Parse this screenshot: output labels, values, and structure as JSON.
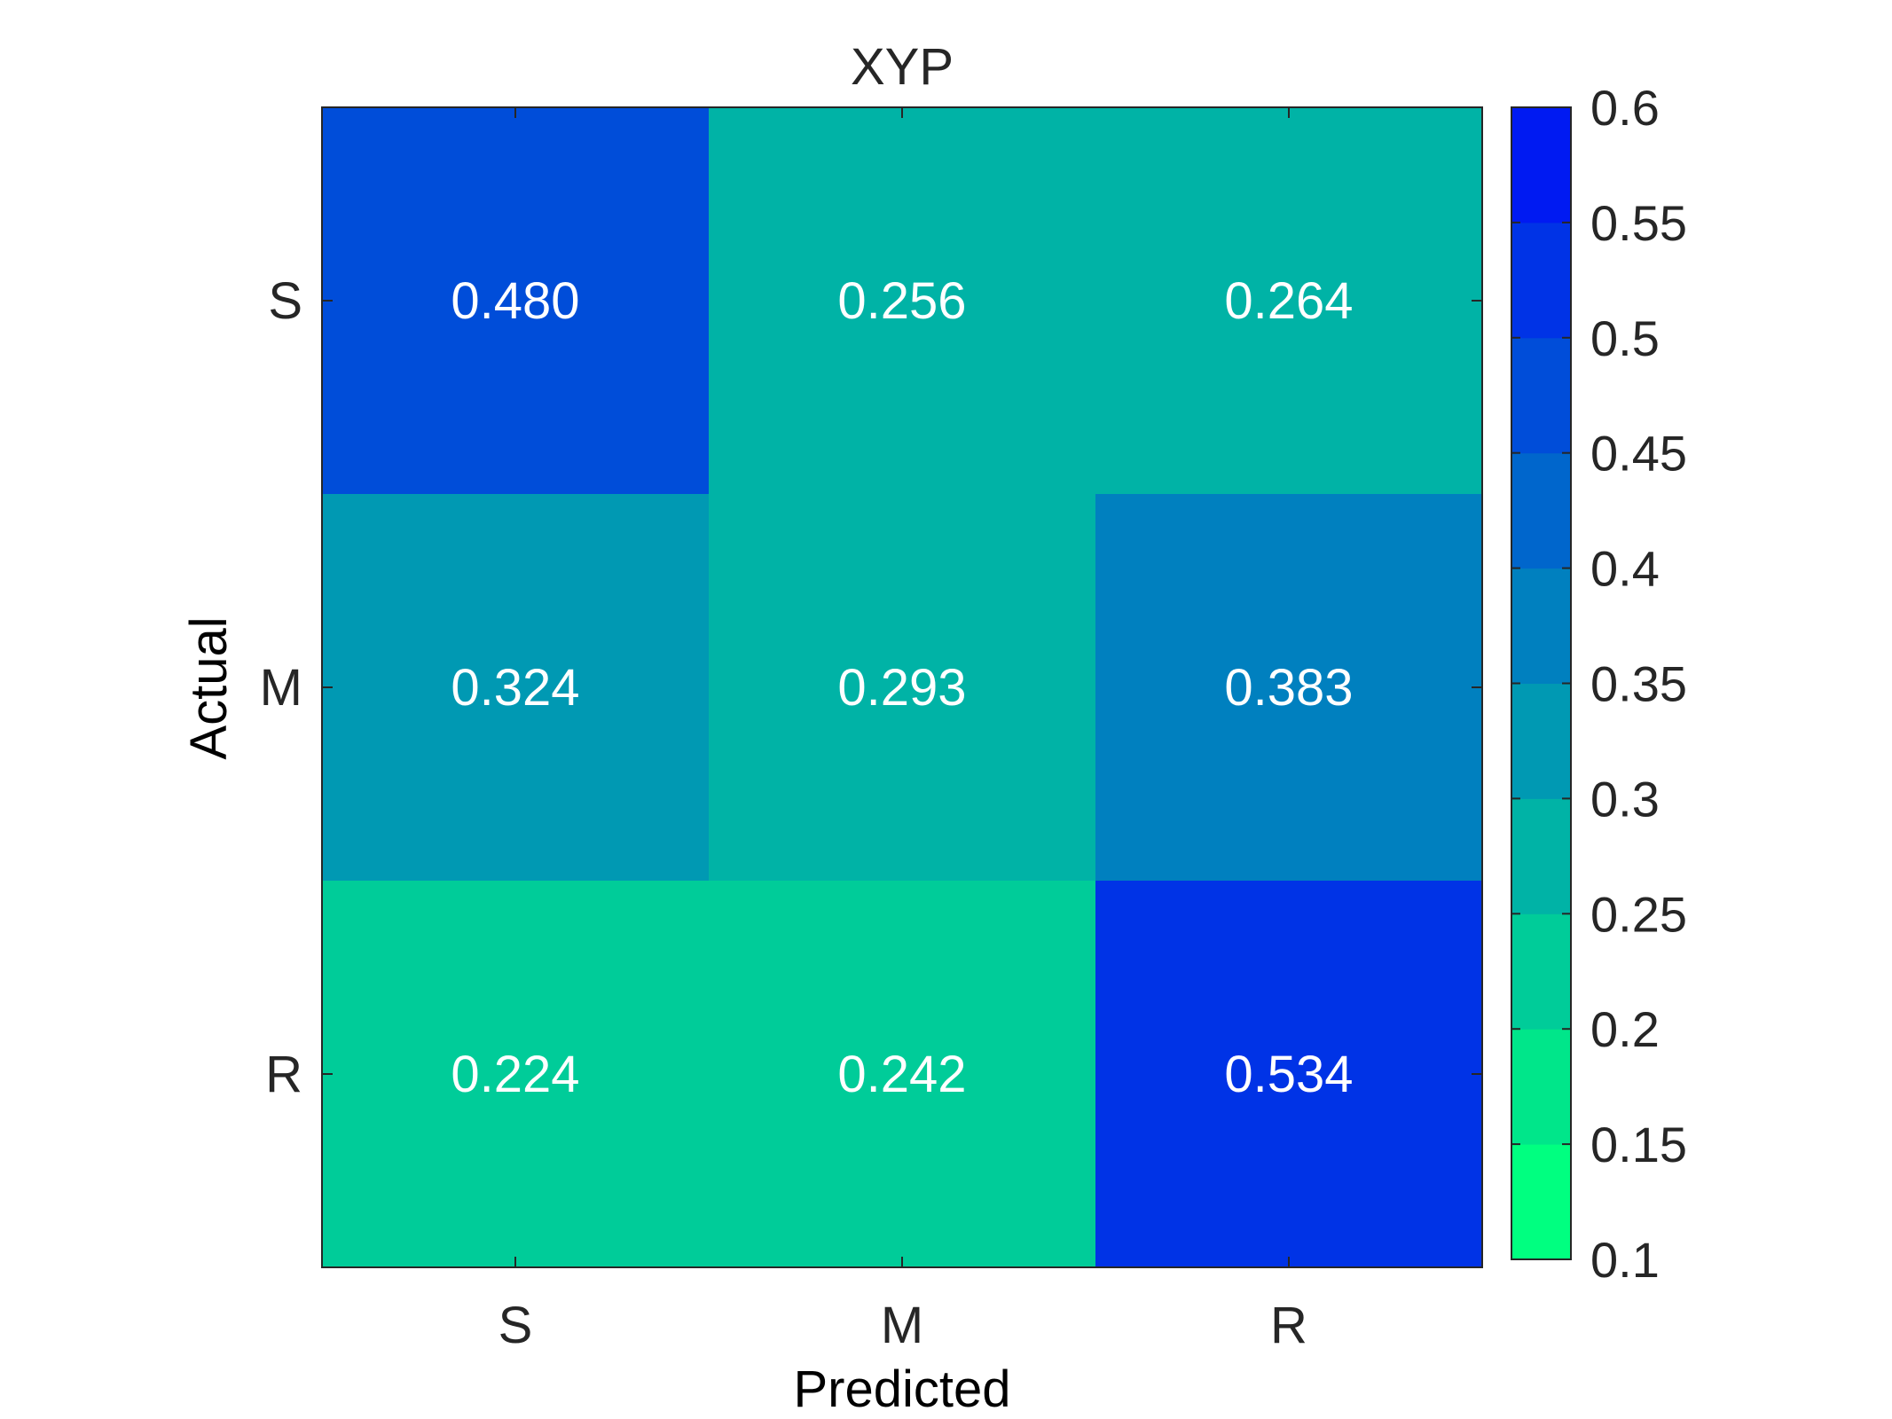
{
  "chart_data": {
    "type": "heatmap",
    "title": "XYP",
    "xlabel": "Predicted",
    "ylabel": "Actual",
    "x_categories": [
      "S",
      "M",
      "R"
    ],
    "y_categories": [
      "S",
      "M",
      "R"
    ],
    "values": [
      [
        0.48,
        0.256,
        0.264
      ],
      [
        0.324,
        0.293,
        0.383
      ],
      [
        0.224,
        0.242,
        0.534
      ]
    ],
    "cell_labels": [
      [
        "0.480",
        "0.256",
        "0.264"
      ],
      [
        "0.324",
        "0.293",
        "0.383"
      ],
      [
        "0.224",
        "0.242",
        "0.534"
      ]
    ],
    "colorbar": {
      "range": [
        0.1,
        0.6
      ],
      "ticks": [
        0.1,
        0.15,
        0.2,
        0.25,
        0.3,
        0.35,
        0.4,
        0.45,
        0.5,
        0.55,
        0.6
      ],
      "tick_labels": [
        "0.1",
        "0.15",
        "0.2",
        "0.25",
        "0.3",
        "0.35",
        "0.4",
        "0.45",
        "0.5",
        "0.55",
        "0.6"
      ],
      "colors": [
        "#00ff80",
        "#00e68a",
        "#00cc99",
        "#00b3a6",
        "#0099b3",
        "#0080bf",
        "#0066cc",
        "#004dd9",
        "#0033e6",
        "#001af2"
      ],
      "position": "right"
    },
    "grid": false,
    "cell_text_color": "#ffffff"
  }
}
